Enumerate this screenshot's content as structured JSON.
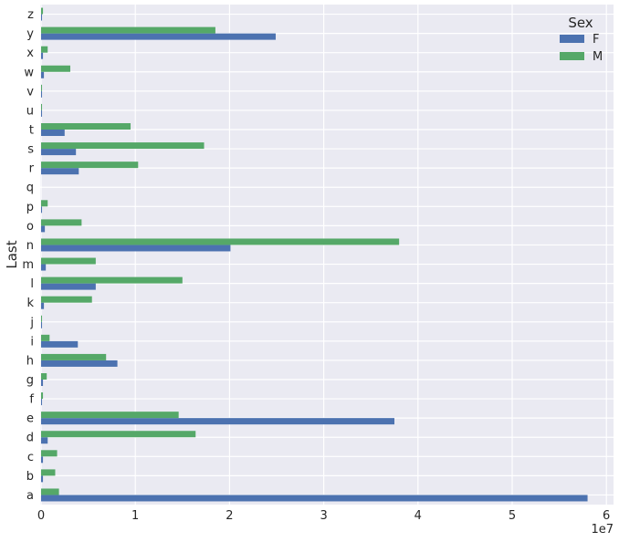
{
  "chart_data": {
    "type": "bar",
    "orientation": "horizontal",
    "ylabel": "Last",
    "xlabel": "",
    "x_offset_label": "1e7",
    "xlim": [
      0,
      6.0
    ],
    "x_ticks": [
      "0",
      "1",
      "2",
      "3",
      "4",
      "5",
      "6"
    ],
    "grid": true,
    "legend": {
      "title": "Sex",
      "placement": "top-right"
    },
    "categories": [
      "a",
      "b",
      "c",
      "d",
      "e",
      "f",
      "g",
      "h",
      "i",
      "j",
      "k",
      "l",
      "m",
      "n",
      "o",
      "p",
      "q",
      "r",
      "s",
      "t",
      "u",
      "v",
      "w",
      "x",
      "y",
      "z"
    ],
    "series": [
      {
        "name": "F",
        "color": "#4c72b0",
        "values": [
          5.8,
          0.02,
          0.02,
          0.07,
          3.75,
          0.01,
          0.02,
          0.81,
          0.39,
          0.01,
          0.03,
          0.58,
          0.05,
          2.01,
          0.04,
          0.01,
          0.0,
          0.4,
          0.37,
          0.25,
          0.01,
          0.01,
          0.03,
          0.02,
          2.49,
          0.01
        ]
      },
      {
        "name": "M",
        "color": "#55a868",
        "values": [
          0.19,
          0.15,
          0.17,
          1.64,
          1.46,
          0.02,
          0.06,
          0.69,
          0.09,
          0.01,
          0.54,
          1.5,
          0.58,
          3.8,
          0.43,
          0.07,
          0.0,
          1.03,
          1.73,
          0.95,
          0.01,
          0.01,
          0.31,
          0.07,
          1.85,
          0.02
        ]
      }
    ]
  }
}
